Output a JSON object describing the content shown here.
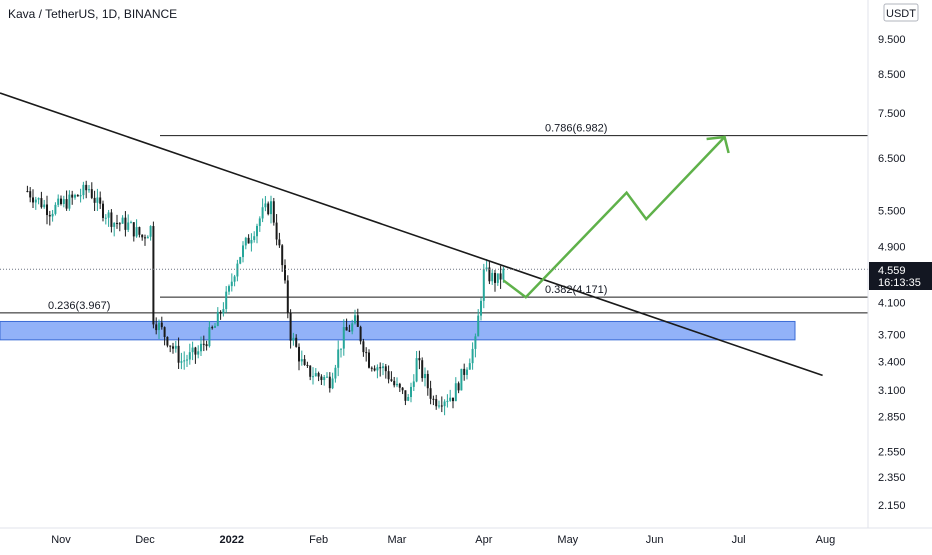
{
  "header": {
    "title": "Kava / TetherUS, 1D, BINANCE"
  },
  "currency_label": "USDT",
  "price_tag": {
    "value": "4.559",
    "countdown": "16:13:35"
  },
  "colors": {
    "candle_up": "#26a69a",
    "candle_down": "#1a1a1a",
    "zone_fill": "#7fa4f7",
    "zone_stroke": "#3a6bd4",
    "projection": "#5fb14a",
    "trendline": "#1a1a1a",
    "price_tag_bg": "#131722"
  },
  "chart_data": {
    "type": "candlestick",
    "title": "Kava / TetherUS, 1D, BINANCE",
    "y_scale": "log",
    "ylim": [
      2.0,
      10.5
    ],
    "y_ticks": [
      "9.500",
      "8.500",
      "7.500",
      "6.500",
      "5.500",
      "4.900",
      "4.100",
      "3.700",
      "3.400",
      "3.100",
      "2.850",
      "2.550",
      "2.350",
      "2.150"
    ],
    "x_ticks": [
      "Nov",
      "Dec",
      "2022",
      "Feb",
      "Mar",
      "Apr",
      "May",
      "Jun",
      "Jul",
      "Aug"
    ],
    "last_price": 4.559,
    "horizontal_levels": [
      {
        "label": "0.786(6.982)",
        "value": 6.982
      },
      {
        "label": "0.382(4.171)",
        "value": 4.171
      },
      {
        "label": "0.236(3.967)",
        "value": 3.967
      }
    ],
    "support_zone": {
      "low": 3.64,
      "high": 3.86
    },
    "trendline": {
      "from": [
        "2021-10-21",
        7.6
      ],
      "to": [
        "2022-07-31",
        3.25
      ]
    },
    "projection_path": [
      [
        "2022-04-08",
        4.4
      ],
      [
        "2022-04-16",
        4.17
      ],
      [
        "2022-05-22",
        5.82
      ],
      [
        "2022-05-29",
        5.35
      ],
      [
        "2022-06-26",
        6.95
      ]
    ],
    "candles_ohlc_anchors": [
      [
        "2021-10-20",
        5.85
      ],
      [
        "2021-10-28",
        5.5
      ],
      [
        "2021-11-05",
        5.7
      ],
      [
        "2021-11-11",
        5.9
      ],
      [
        "2021-11-14",
        5.6
      ],
      [
        "2021-11-20",
        5.3
      ],
      [
        "2021-11-25",
        5.25
      ],
      [
        "2021-11-30",
        5.05
      ],
      [
        "2021-12-03",
        5.2
      ],
      [
        "2021-12-04",
        3.9
      ],
      [
        "2021-12-08",
        3.7
      ],
      [
        "2021-12-14",
        3.4
      ],
      [
        "2021-12-20",
        3.5
      ],
      [
        "2021-12-26",
        3.8
      ],
      [
        "2021-12-31",
        4.25
      ],
      [
        "2022-01-03",
        4.7
      ],
      [
        "2022-01-08",
        5.1
      ],
      [
        "2022-01-12",
        5.45
      ],
      [
        "2022-01-15",
        5.6
      ],
      [
        "2022-01-19",
        4.6
      ],
      [
        "2022-01-22",
        3.7
      ],
      [
        "2022-01-27",
        3.3
      ],
      [
        "2022-02-05",
        3.2
      ],
      [
        "2022-02-10",
        3.7
      ],
      [
        "2022-02-14",
        3.85
      ],
      [
        "2022-02-19",
        3.4
      ],
      [
        "2022-02-25",
        3.3
      ],
      [
        "2022-02-28",
        3.15
      ],
      [
        "2022-03-05",
        3.0
      ],
      [
        "2022-03-08",
        3.4
      ],
      [
        "2022-03-14",
        3.0
      ],
      [
        "2022-03-21",
        3.05
      ],
      [
        "2022-03-25",
        3.3
      ],
      [
        "2022-03-29",
        3.6
      ],
      [
        "2022-04-01",
        4.5
      ],
      [
        "2022-04-06",
        4.4
      ],
      [
        "2022-04-09",
        4.56
      ]
    ]
  }
}
